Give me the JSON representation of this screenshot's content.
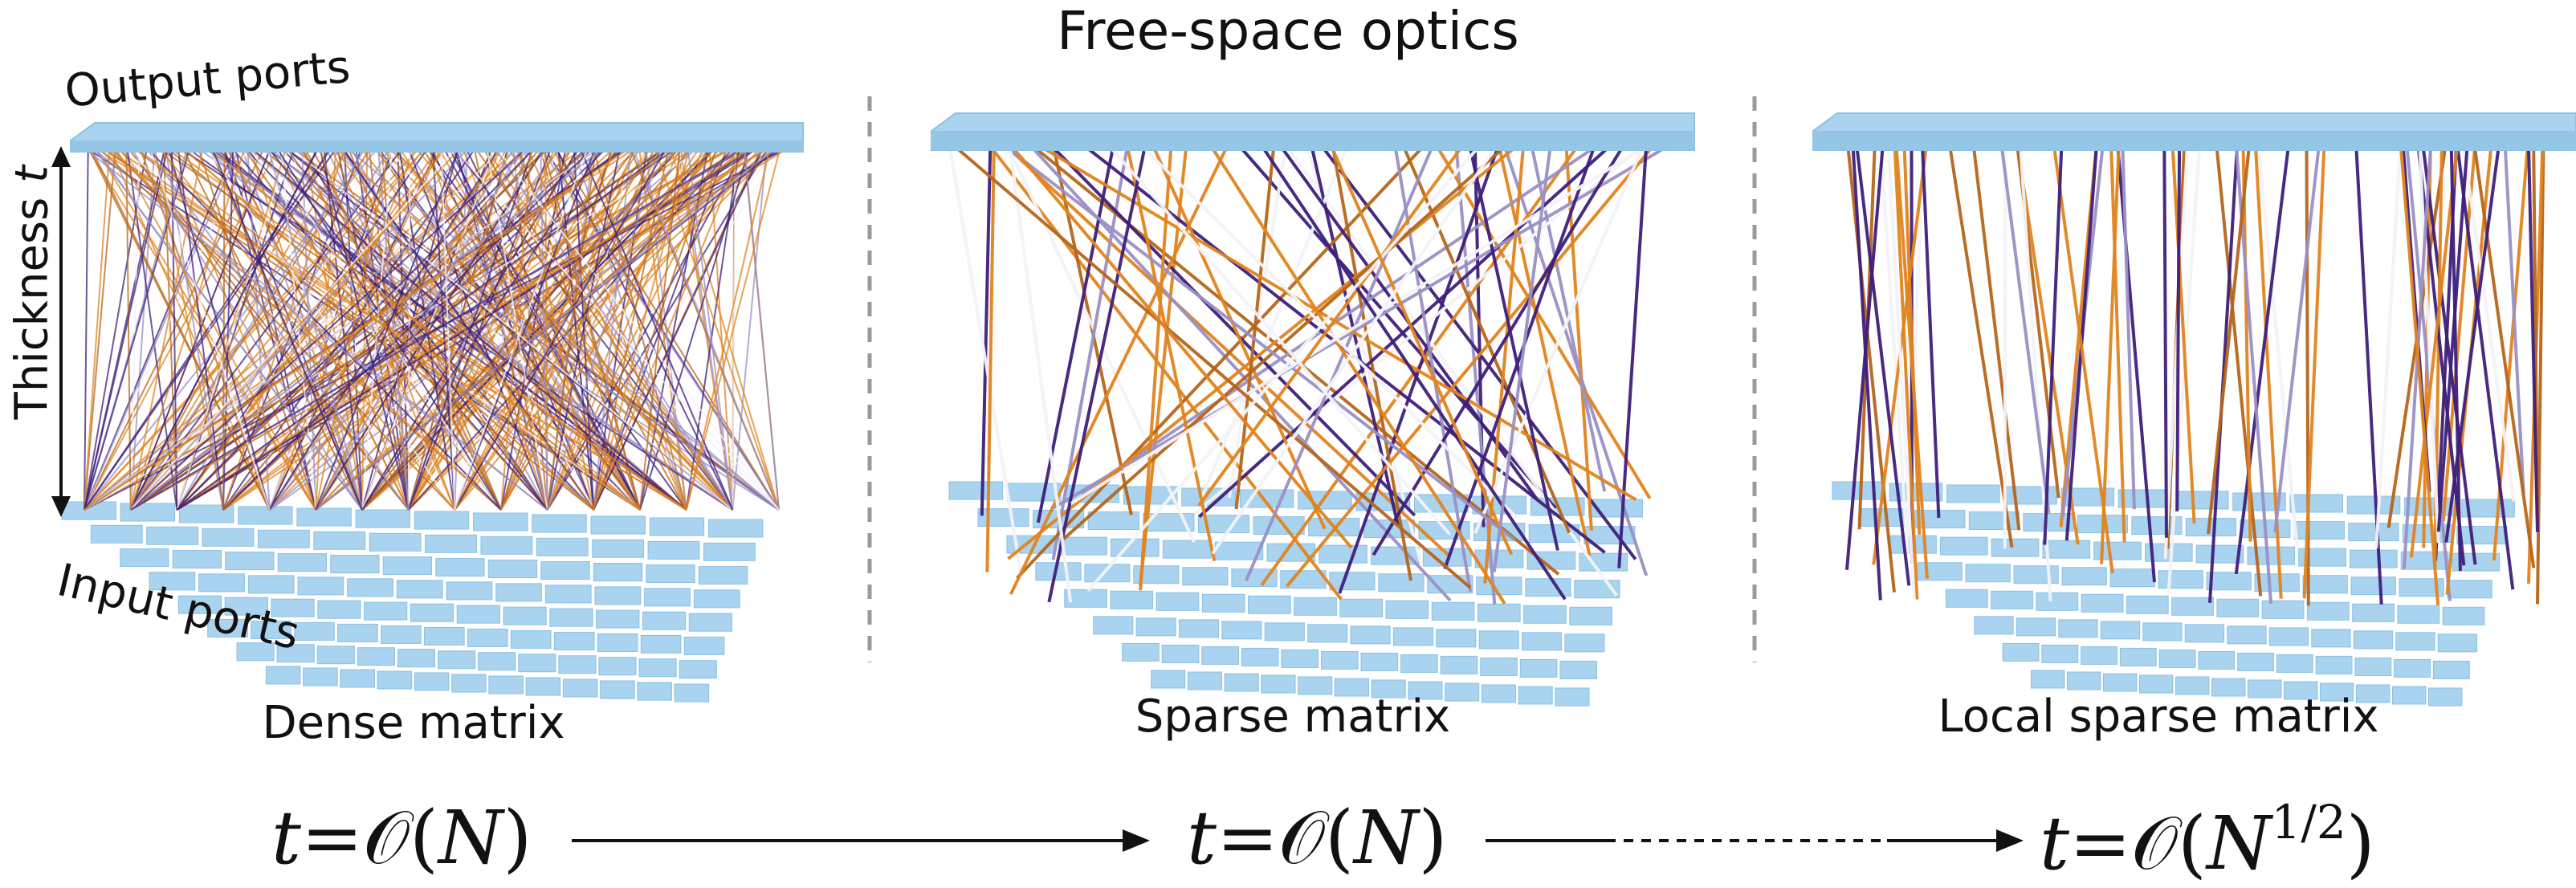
{
  "title": "Free-space optics",
  "labels": {
    "output_ports": "Output ports",
    "input_ports": "Input ports",
    "thickness": "Thickness",
    "thickness_symbol": "t"
  },
  "panels": [
    {
      "name": "Dense matrix",
      "formula_base": "N",
      "formula_exp": ""
    },
    {
      "name": "Sparse matrix",
      "formula_base": "N",
      "formula_exp": ""
    },
    {
      "name": "Local sparse matrix",
      "formula_base": "N",
      "formula_exp": "1/2"
    }
  ],
  "formula_parts": {
    "t": "t",
    "eq": "=",
    "O": "𝒪",
    "lp": "(",
    "rp": ")"
  },
  "colors": {
    "port_plate": "#a9d3ee",
    "port_plate_edge": "#8cc1e4",
    "link_orange": "#e0841f",
    "link_brown": "#b5651a",
    "link_purple": "#3e1f7a",
    "link_lavender": "#9a90c4",
    "link_white": "#f3f3f8",
    "divider": "#9a9a9a"
  }
}
